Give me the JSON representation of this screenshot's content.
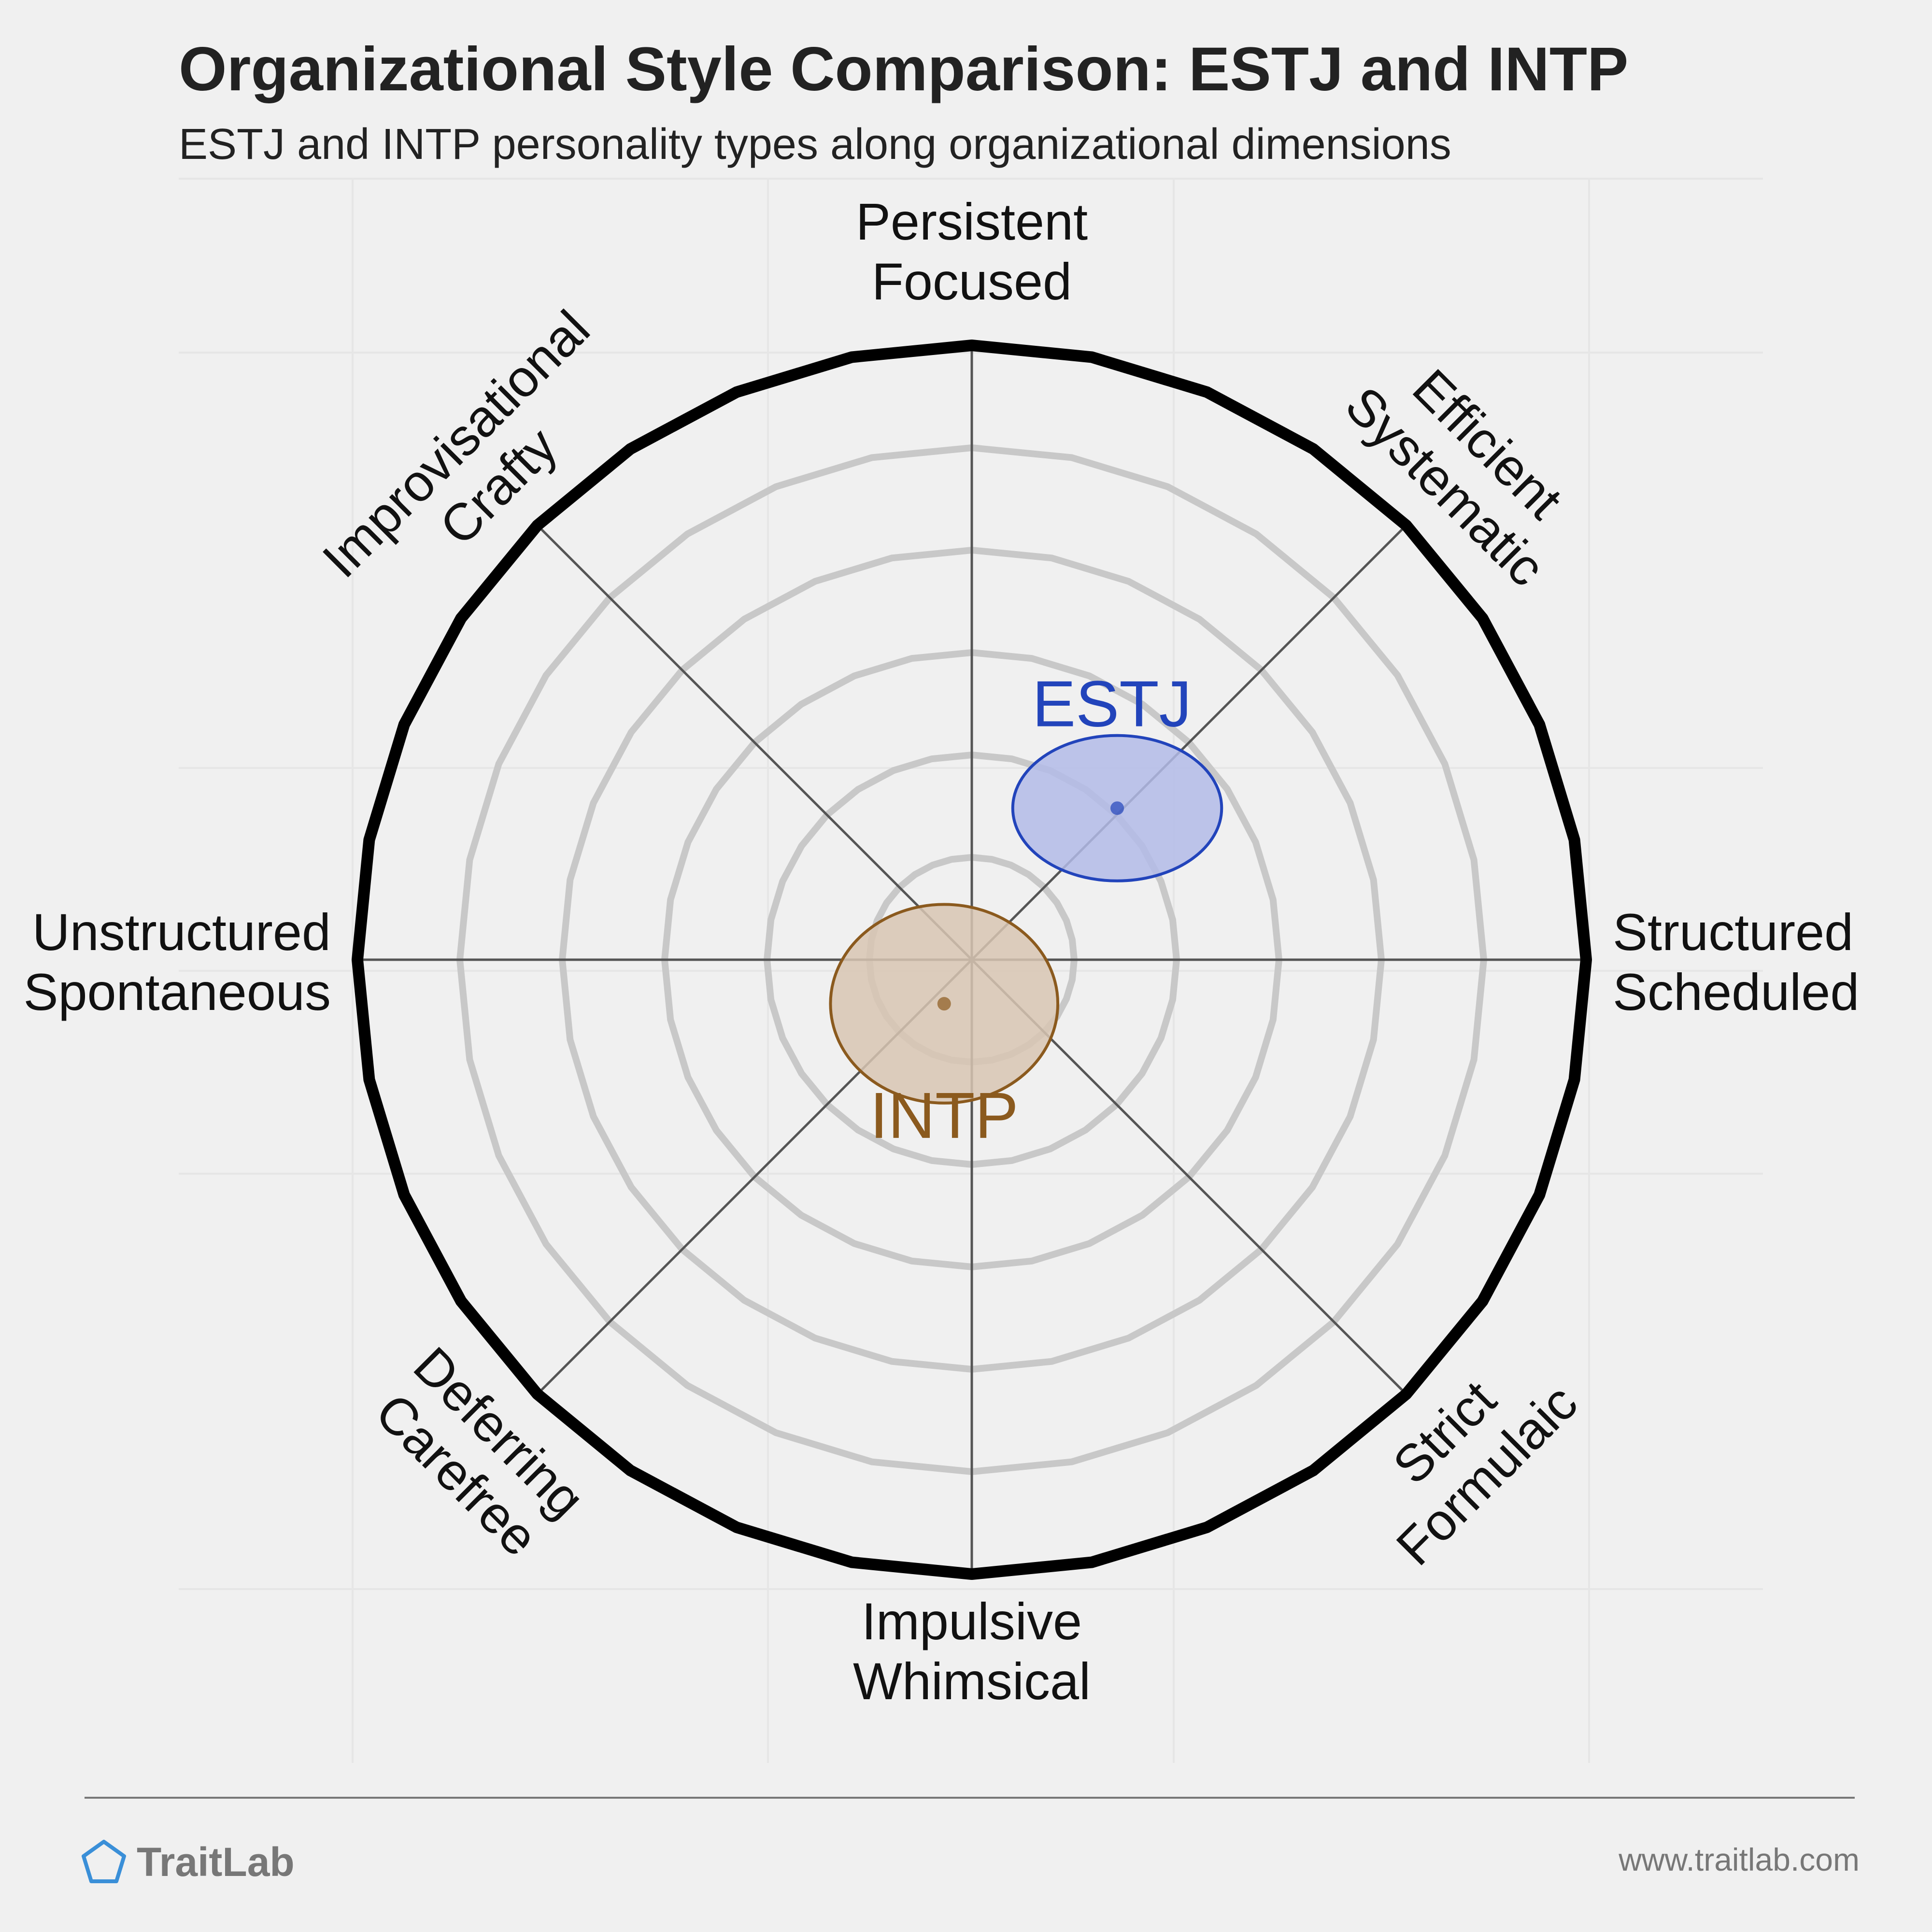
{
  "header": {
    "title": "Organizational Style Comparison: ESTJ and INTP",
    "subtitle": "ESTJ and INTP personality types along organizational dimensions"
  },
  "footer": {
    "brand": "TraitLab",
    "url": "www.traitlab.com"
  },
  "chart_data": {
    "type": "scatter",
    "title": "Organizational Style Comparison: ESTJ and INTP",
    "subtitle": "ESTJ and INTP personality types along organizational dimensions",
    "axes": [
      {
        "name": "Structured Scheduled",
        "lines": [
          "Structured",
          "Scheduled"
        ],
        "angle_deg": 0
      },
      {
        "name": "Efficient Systematic",
        "lines": [
          "Efficient",
          "Systematic"
        ],
        "angle_deg": 45
      },
      {
        "name": "Persistent Focused",
        "lines": [
          "Persistent",
          "Focused"
        ],
        "angle_deg": 90
      },
      {
        "name": "Improvisational Crafty",
        "lines": [
          "Improvisational",
          "Crafty"
        ],
        "angle_deg": 135
      },
      {
        "name": "Unstructured Spontaneous",
        "lines": [
          "Unstructured",
          "Spontaneous"
        ],
        "angle_deg": 180
      },
      {
        "name": "Deferring Carefree",
        "lines": [
          "Deferring",
          "Carefree"
        ],
        "angle_deg": 225
      },
      {
        "name": "Impulsive Whimsical",
        "lines": [
          "Impulsive",
          "Whimsical"
        ],
        "angle_deg": 270
      },
      {
        "name": "Strict Formulaic",
        "lines": [
          "Strict",
          "Formulaic"
        ],
        "angle_deg": 315
      }
    ],
    "ring_count": 6,
    "rlim": [
      0,
      6
    ],
    "grid": true,
    "series": [
      {
        "name": "ESTJ",
        "x": 1.42,
        "y": 1.48,
        "spread_x": 1.02,
        "spread_y": 0.71,
        "color": "#2244bb",
        "fill": "#b3bbe8",
        "label_pos": "upper-left"
      },
      {
        "name": "INTP",
        "x": -0.27,
        "y": -0.43,
        "spread_x": 1.11,
        "spread_y": 0.97,
        "color": "#8b5a1e",
        "fill": "#d8c6b3",
        "label_pos": "below"
      }
    ]
  }
}
